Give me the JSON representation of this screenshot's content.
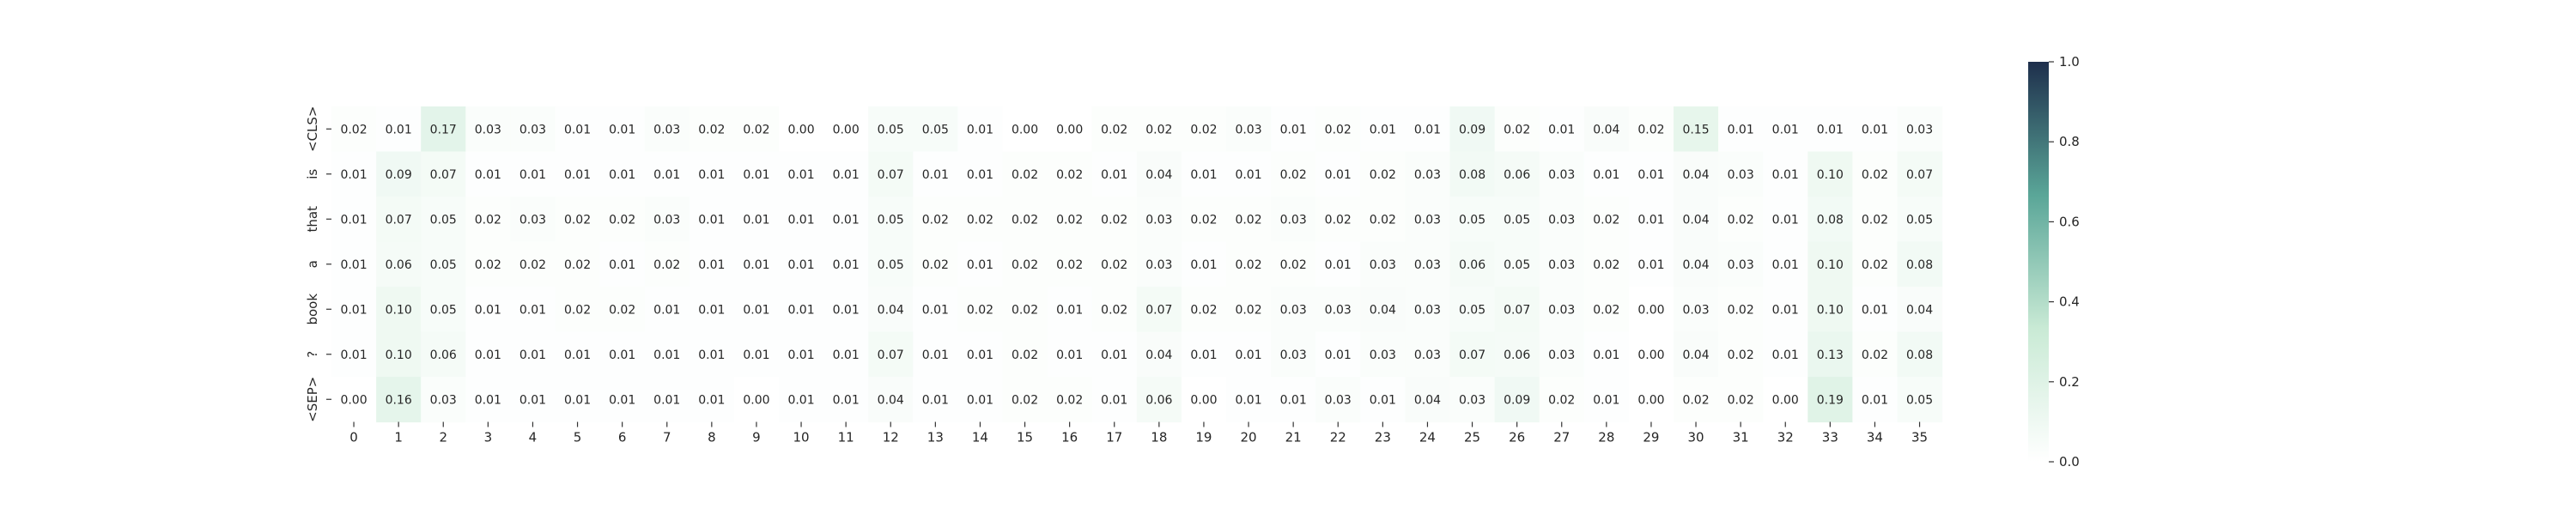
{
  "chart_data": {
    "type": "heatmap",
    "title": "",
    "xlabel": "",
    "ylabel": "",
    "x_labels": [
      "0",
      "1",
      "2",
      "3",
      "4",
      "5",
      "6",
      "7",
      "8",
      "9",
      "10",
      "11",
      "12",
      "13",
      "14",
      "15",
      "16",
      "17",
      "18",
      "19",
      "20",
      "21",
      "22",
      "23",
      "24",
      "25",
      "26",
      "27",
      "28",
      "29",
      "30",
      "31",
      "32",
      "33",
      "34",
      "35"
    ],
    "y_labels": [
      "<CLS>",
      "is",
      "that",
      "a",
      "book",
      "?",
      "<SEP>"
    ],
    "values": [
      [
        0.02,
        0.01,
        0.17,
        0.03,
        0.03,
        0.01,
        0.01,
        0.03,
        0.02,
        0.02,
        0.0,
        0.0,
        0.05,
        0.05,
        0.01,
        0.0,
        0.0,
        0.02,
        0.02,
        0.02,
        0.03,
        0.01,
        0.02,
        0.01,
        0.01,
        0.09,
        0.02,
        0.01,
        0.04,
        0.02,
        0.15,
        0.01,
        0.01,
        0.01,
        0.01,
        0.03
      ],
      [
        0.01,
        0.09,
        0.07,
        0.01,
        0.01,
        0.01,
        0.01,
        0.01,
        0.01,
        0.01,
        0.01,
        0.01,
        0.07,
        0.01,
        0.01,
        0.02,
        0.02,
        0.01,
        0.04,
        0.01,
        0.01,
        0.02,
        0.01,
        0.02,
        0.03,
        0.08,
        0.06,
        0.03,
        0.01,
        0.01,
        0.04,
        0.03,
        0.01,
        0.1,
        0.02,
        0.07
      ],
      [
        0.01,
        0.07,
        0.05,
        0.02,
        0.03,
        0.02,
        0.02,
        0.03,
        0.01,
        0.01,
        0.01,
        0.01,
        0.05,
        0.02,
        0.02,
        0.02,
        0.02,
        0.02,
        0.03,
        0.02,
        0.02,
        0.03,
        0.02,
        0.02,
        0.03,
        0.05,
        0.05,
        0.03,
        0.02,
        0.01,
        0.04,
        0.02,
        0.01,
        0.08,
        0.02,
        0.05
      ],
      [
        0.01,
        0.06,
        0.05,
        0.02,
        0.02,
        0.02,
        0.01,
        0.02,
        0.01,
        0.01,
        0.01,
        0.01,
        0.05,
        0.02,
        0.01,
        0.02,
        0.02,
        0.02,
        0.03,
        0.01,
        0.02,
        0.02,
        0.01,
        0.03,
        0.03,
        0.06,
        0.05,
        0.03,
        0.02,
        0.01,
        0.04,
        0.03,
        0.01,
        0.1,
        0.02,
        0.08
      ],
      [
        0.01,
        0.1,
        0.05,
        0.01,
        0.01,
        0.02,
        0.02,
        0.01,
        0.01,
        0.01,
        0.01,
        0.01,
        0.04,
        0.01,
        0.02,
        0.02,
        0.01,
        0.02,
        0.07,
        0.02,
        0.02,
        0.03,
        0.03,
        0.04,
        0.03,
        0.05,
        0.07,
        0.03,
        0.02,
        0.0,
        0.03,
        0.02,
        0.01,
        0.1,
        0.01,
        0.04
      ],
      [
        0.01,
        0.1,
        0.06,
        0.01,
        0.01,
        0.01,
        0.01,
        0.01,
        0.01,
        0.01,
        0.01,
        0.01,
        0.07,
        0.01,
        0.01,
        0.02,
        0.01,
        0.01,
        0.04,
        0.01,
        0.01,
        0.03,
        0.01,
        0.03,
        0.03,
        0.07,
        0.06,
        0.03,
        0.01,
        0.0,
        0.04,
        0.02,
        0.01,
        0.13,
        0.02,
        0.08
      ],
      [
        0.0,
        0.16,
        0.03,
        0.01,
        0.01,
        0.01,
        0.01,
        0.01,
        0.01,
        0.0,
        0.01,
        0.01,
        0.04,
        0.01,
        0.01,
        0.02,
        0.02,
        0.01,
        0.06,
        0.0,
        0.01,
        0.01,
        0.03,
        0.01,
        0.04,
        0.03,
        0.09,
        0.02,
        0.01,
        0.0,
        0.02,
        0.02,
        0.0,
        0.19,
        0.01,
        0.05
      ]
    ],
    "value_range": [
      0.0,
      1.0
    ],
    "colorbar_ticks": [
      "0.0",
      "0.2",
      "0.4",
      "0.6",
      "0.8",
      "1.0"
    ],
    "colormap": [
      "#ffffff",
      "#c9ead5",
      "#5aa698",
      "#1e2f4c"
    ],
    "annotation_color": "#262626"
  }
}
